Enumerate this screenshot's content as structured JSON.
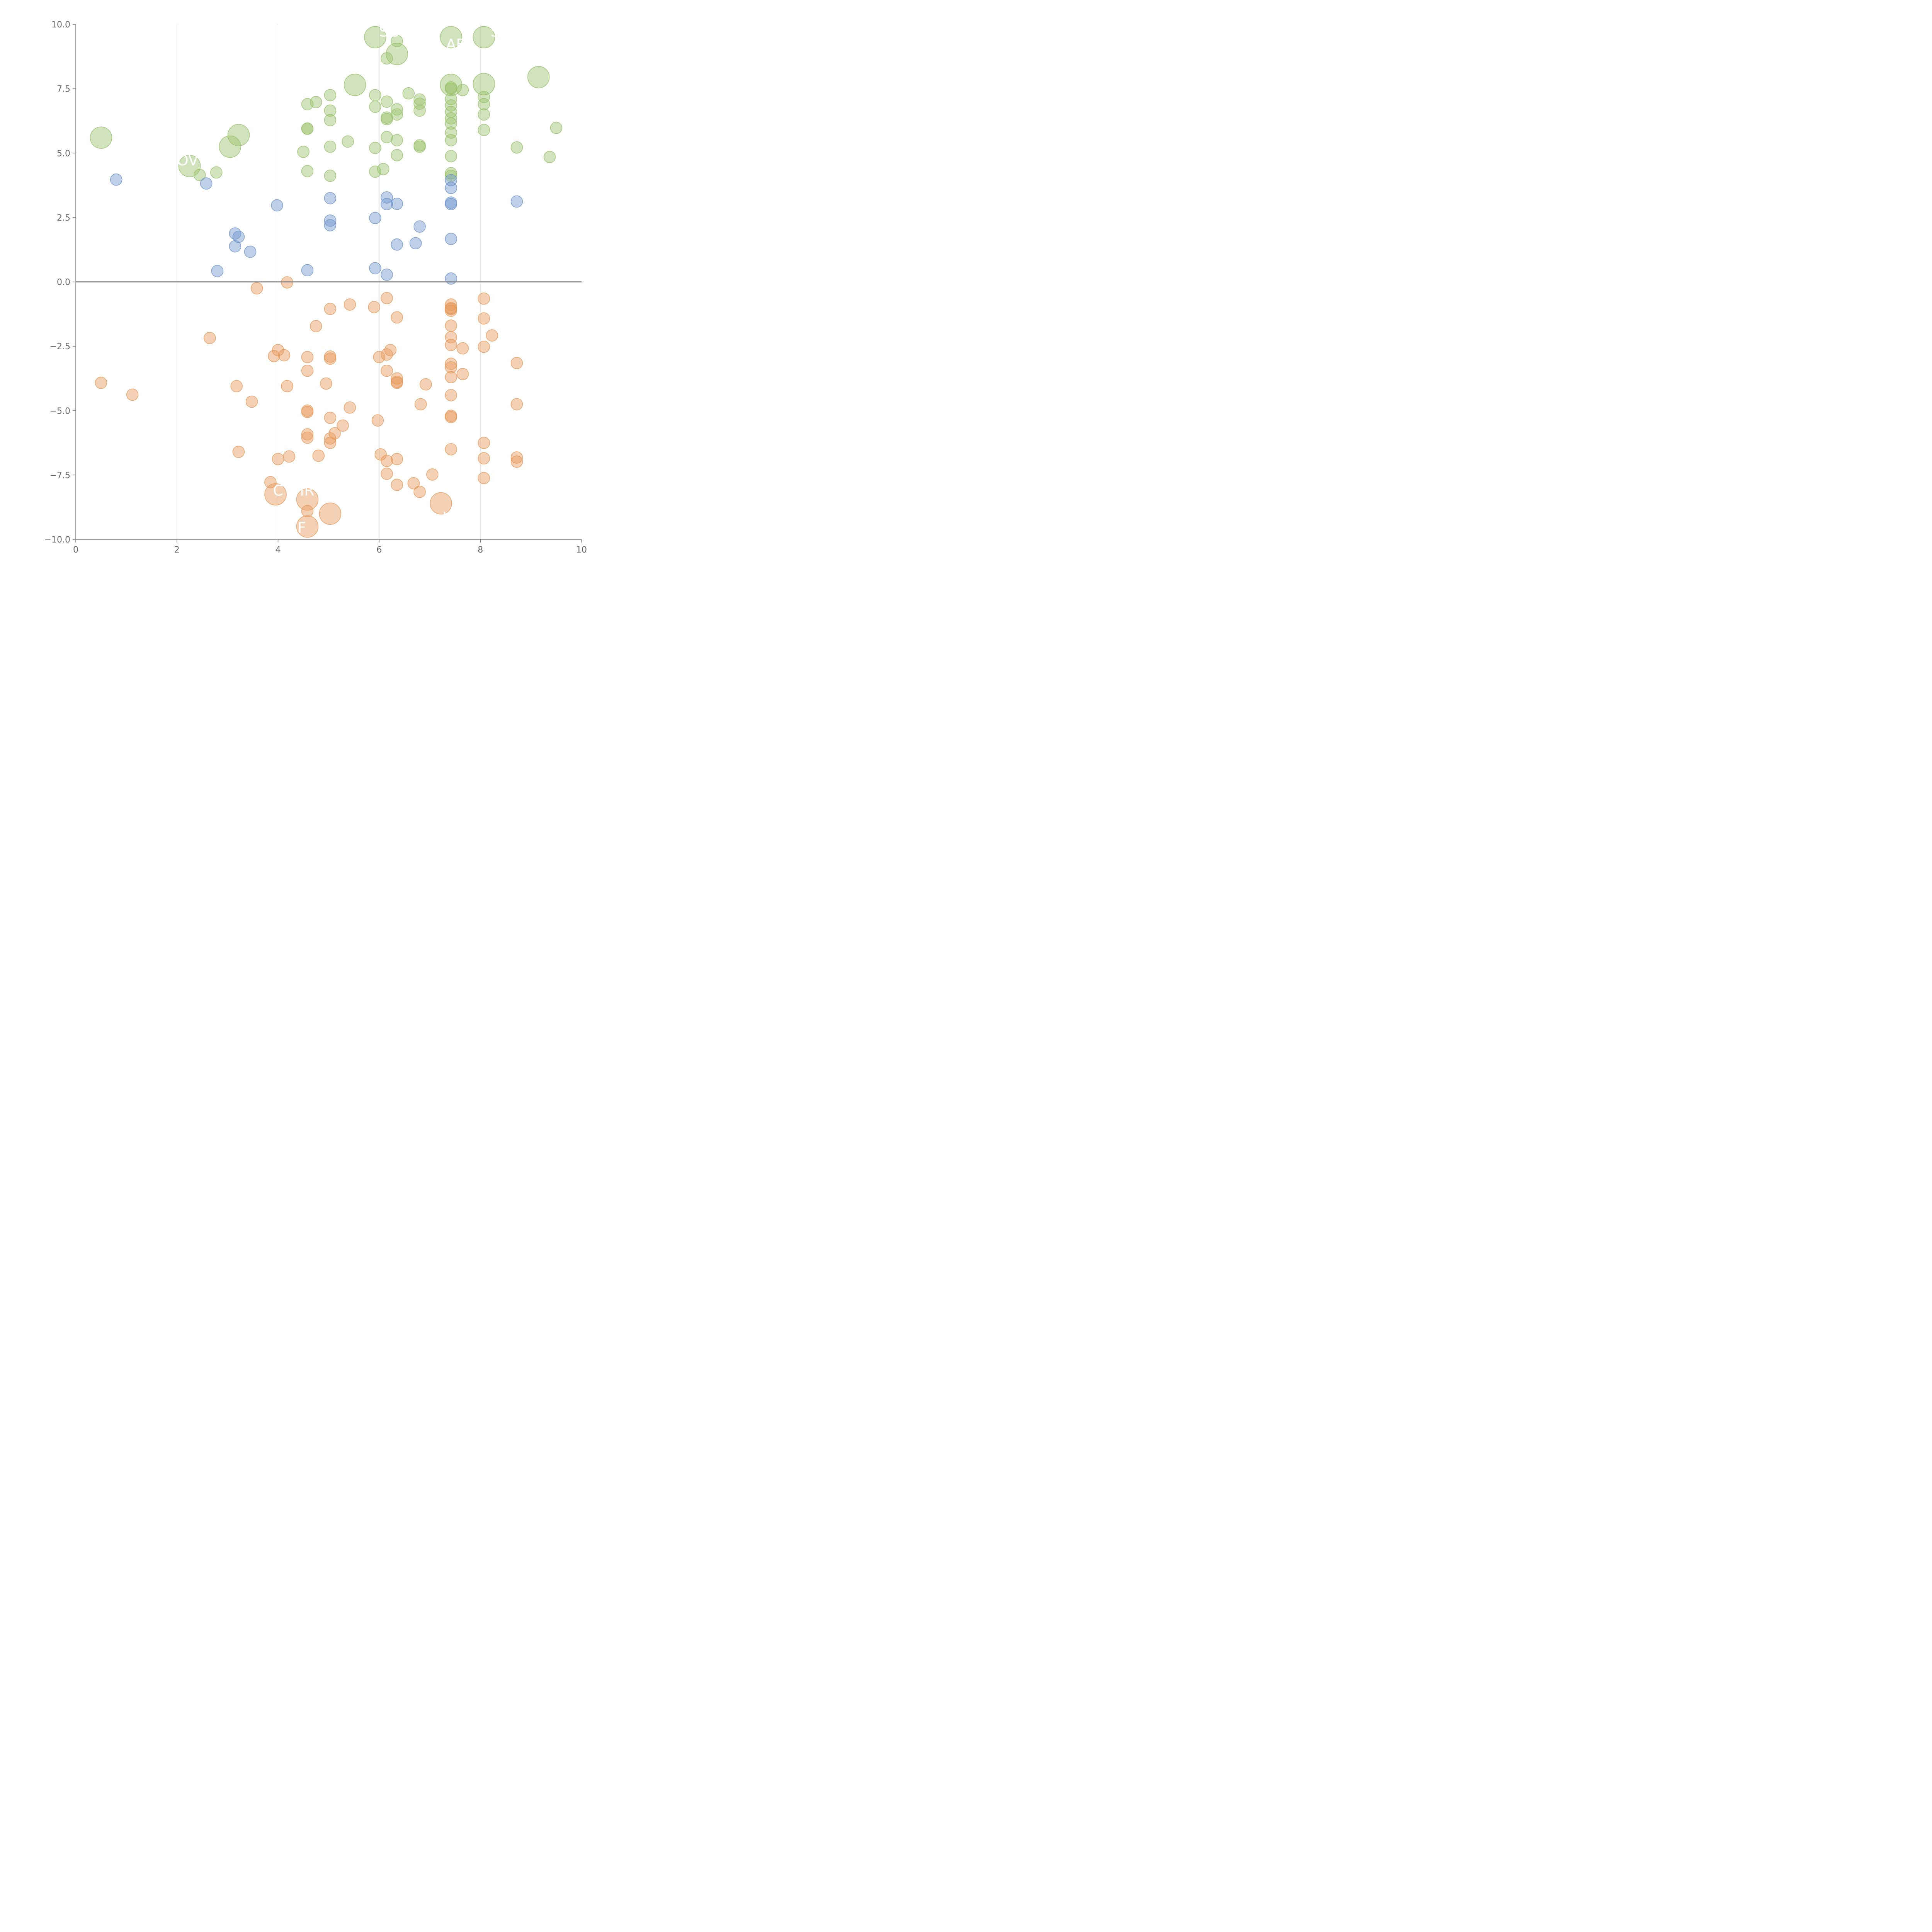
{
  "chart_data": {
    "type": "scatter",
    "title": "",
    "xlabel": "",
    "ylabel": "",
    "xlim": [
      0,
      10
    ],
    "ylim": [
      -10,
      10
    ],
    "x_ticks": [
      0,
      2,
      4,
      6,
      8,
      10
    ],
    "x_tick_labels": [
      "0",
      "2",
      "4",
      "6",
      "8",
      "10"
    ],
    "y_ticks": [
      -10,
      -7.5,
      -5,
      -2.5,
      0,
      2.5,
      5,
      7.5,
      10
    ],
    "y_tick_labels": [
      "−10.0",
      "−7.5",
      "−5.0",
      "−2.5",
      "0.0",
      "2.5",
      "5.0",
      "7.5",
      "10.0"
    ],
    "vertical_gridlines_at": [
      2,
      4,
      6,
      8
    ],
    "zero_line": 0,
    "colors": {
      "green": "#98c16b",
      "blue": "#6f94cc",
      "orange": "#e69a5b",
      "axis": "#808080",
      "grid": "#d9d9d9",
      "label": "#ffffff"
    },
    "series": [
      {
        "name": "green",
        "color": "#98c16b",
        "points": [
          [
            0.5,
            5.6,
            2
          ],
          [
            2.25,
            4.5,
            2
          ],
          [
            2.45,
            4.15,
            1
          ],
          [
            2.78,
            4.25,
            1
          ],
          [
            3.05,
            5.25,
            2
          ],
          [
            3.22,
            5.7,
            2
          ],
          [
            4.5,
            5.05,
            1
          ],
          [
            4.58,
            6.9,
            1
          ],
          [
            4.75,
            6.98,
            1
          ],
          [
            4.58,
            5.95,
            1
          ],
          [
            4.58,
            5.95,
            1
          ],
          [
            4.58,
            4.3,
            1
          ],
          [
            5.03,
            7.25,
            1
          ],
          [
            5.03,
            6.65,
            1
          ],
          [
            5.03,
            6.28,
            1
          ],
          [
            5.03,
            5.25,
            1
          ],
          [
            5.03,
            4.12,
            1
          ],
          [
            5.38,
            5.45,
            1
          ],
          [
            5.52,
            7.65,
            2
          ],
          [
            5.92,
            9.5,
            2
          ],
          [
            5.92,
            7.25,
            1
          ],
          [
            5.92,
            6.8,
            1
          ],
          [
            5.92,
            5.2,
            1
          ],
          [
            5.92,
            4.28,
            1
          ],
          [
            6.08,
            4.38,
            1
          ],
          [
            6.15,
            8.68,
            1
          ],
          [
            6.15,
            7.0,
            1
          ],
          [
            6.15,
            6.32,
            1
          ],
          [
            6.15,
            6.38,
            1
          ],
          [
            6.15,
            5.62,
            1
          ],
          [
            6.35,
            9.35,
            1
          ],
          [
            6.35,
            8.85,
            2
          ],
          [
            6.35,
            6.7,
            1
          ],
          [
            6.35,
            6.5,
            1
          ],
          [
            6.35,
            5.5,
            1
          ],
          [
            6.35,
            4.92,
            1
          ],
          [
            6.58,
            7.32,
            1
          ],
          [
            6.8,
            7.08,
            1
          ],
          [
            6.8,
            6.92,
            1
          ],
          [
            6.8,
            6.65,
            1
          ],
          [
            6.8,
            5.3,
            1
          ],
          [
            6.8,
            5.25,
            1
          ],
          [
            7.42,
            9.5,
            2
          ],
          [
            7.42,
            7.65,
            2
          ],
          [
            7.42,
            7.55,
            1
          ],
          [
            7.42,
            7.5,
            1
          ],
          [
            7.42,
            7.1,
            1
          ],
          [
            7.42,
            6.85,
            1
          ],
          [
            7.42,
            6.6,
            1
          ],
          [
            7.42,
            6.35,
            1
          ],
          [
            7.42,
            6.15,
            1
          ],
          [
            7.42,
            5.8,
            1
          ],
          [
            7.42,
            5.5,
            1
          ],
          [
            7.42,
            4.88,
            1
          ],
          [
            7.42,
            4.22,
            1
          ],
          [
            7.42,
            4.12,
            1
          ],
          [
            7.65,
            7.45,
            1
          ],
          [
            8.07,
            9.5,
            2
          ],
          [
            8.07,
            7.68,
            2
          ],
          [
            8.07,
            7.18,
            1
          ],
          [
            8.07,
            6.9,
            1
          ],
          [
            8.07,
            6.5,
            1
          ],
          [
            8.07,
            5.9,
            1
          ],
          [
            8.72,
            5.22,
            1
          ],
          [
            9.15,
            7.95,
            2
          ],
          [
            9.37,
            4.85,
            1
          ],
          [
            9.5,
            5.98,
            1
          ]
        ]
      },
      {
        "name": "blue",
        "color": "#6f94cc",
        "points": [
          [
            0.8,
            3.97,
            1
          ],
          [
            2.58,
            3.82,
            1
          ],
          [
            2.8,
            0.42,
            1
          ],
          [
            3.15,
            1.88,
            1
          ],
          [
            3.22,
            1.75,
            1
          ],
          [
            3.15,
            1.38,
            1
          ],
          [
            3.45,
            1.17,
            1
          ],
          [
            3.98,
            2.97,
            1
          ],
          [
            4.58,
            0.45,
            1
          ],
          [
            5.03,
            3.25,
            1
          ],
          [
            5.03,
            2.38,
            1
          ],
          [
            5.03,
            2.2,
            1
          ],
          [
            5.92,
            2.48,
            1
          ],
          [
            5.92,
            0.53,
            1
          ],
          [
            6.15,
            3.28,
            1
          ],
          [
            6.15,
            3.02,
            1
          ],
          [
            6.15,
            0.28,
            1
          ],
          [
            6.35,
            3.03,
            1
          ],
          [
            6.35,
            1.45,
            1
          ],
          [
            6.72,
            1.5,
            1
          ],
          [
            6.8,
            2.15,
            1
          ],
          [
            7.42,
            3.95,
            1
          ],
          [
            7.42,
            3.65,
            1
          ],
          [
            7.42,
            3.08,
            1
          ],
          [
            7.42,
            3.02,
            1
          ],
          [
            7.42,
            1.67,
            1
          ],
          [
            7.42,
            0.13,
            1
          ],
          [
            8.72,
            3.12,
            1
          ]
        ]
      },
      {
        "name": "orange",
        "color": "#e69a5b",
        "points": [
          [
            0.5,
            -3.92,
            1
          ],
          [
            1.12,
            -4.38,
            1
          ],
          [
            2.65,
            -2.18,
            1
          ],
          [
            3.18,
            -4.05,
            1
          ],
          [
            3.22,
            -6.6,
            1
          ],
          [
            3.48,
            -4.65,
            1
          ],
          [
            3.58,
            -0.25,
            1
          ],
          [
            3.85,
            -7.78,
            1
          ],
          [
            3.92,
            -2.88,
            1
          ],
          [
            3.95,
            -8.25,
            2
          ],
          [
            4.0,
            -2.65,
            1
          ],
          [
            4.0,
            -6.88,
            1
          ],
          [
            4.12,
            -2.85,
            1
          ],
          [
            4.18,
            -0.02,
            1
          ],
          [
            4.18,
            -4.05,
            1
          ],
          [
            4.22,
            -6.78,
            1
          ],
          [
            4.58,
            -2.92,
            1
          ],
          [
            4.58,
            -3.45,
            1
          ],
          [
            4.58,
            -5.0,
            1
          ],
          [
            4.58,
            -5.05,
            1
          ],
          [
            4.58,
            -5.92,
            1
          ],
          [
            4.58,
            -6.05,
            1
          ],
          [
            4.58,
            -8.45,
            2
          ],
          [
            4.58,
            -8.9,
            1
          ],
          [
            4.58,
            -9.5,
            2
          ],
          [
            4.75,
            -1.72,
            1
          ],
          [
            4.8,
            -6.75,
            1
          ],
          [
            4.95,
            -3.95,
            1
          ],
          [
            5.03,
            -1.05,
            1
          ],
          [
            5.03,
            -2.9,
            1
          ],
          [
            5.03,
            -2.98,
            1
          ],
          [
            5.03,
            -5.28,
            1
          ],
          [
            5.03,
            -6.08,
            1
          ],
          [
            5.03,
            -6.25,
            1
          ],
          [
            5.03,
            -9.0,
            2
          ],
          [
            5.12,
            -5.88,
            1
          ],
          [
            5.28,
            -5.58,
            1
          ],
          [
            5.42,
            -0.88,
            1
          ],
          [
            5.42,
            -4.88,
            1
          ],
          [
            5.9,
            -0.98,
            1
          ],
          [
            5.97,
            -5.38,
            1
          ],
          [
            6.0,
            -2.92,
            1
          ],
          [
            6.03,
            -6.7,
            1
          ],
          [
            6.15,
            -0.63,
            1
          ],
          [
            6.15,
            -2.82,
            1
          ],
          [
            6.15,
            -3.45,
            1
          ],
          [
            6.15,
            -6.95,
            1
          ],
          [
            6.15,
            -7.45,
            1
          ],
          [
            6.22,
            -2.65,
            1
          ],
          [
            6.35,
            -1.38,
            1
          ],
          [
            6.35,
            -3.75,
            1
          ],
          [
            6.35,
            -3.88,
            1
          ],
          [
            6.35,
            -3.92,
            1
          ],
          [
            6.35,
            -6.88,
            1
          ],
          [
            6.35,
            -7.88,
            1
          ],
          [
            6.68,
            -7.82,
            1
          ],
          [
            6.8,
            -8.15,
            1
          ],
          [
            6.82,
            -4.75,
            1
          ],
          [
            6.92,
            -3.98,
            1
          ],
          [
            7.05,
            -7.48,
            1
          ],
          [
            7.22,
            -8.6,
            2
          ],
          [
            7.42,
            -0.88,
            1
          ],
          [
            7.42,
            -1.02,
            1
          ],
          [
            7.42,
            -1.05,
            1
          ],
          [
            7.42,
            -1.12,
            1
          ],
          [
            7.42,
            -1.7,
            1
          ],
          [
            7.42,
            -2.15,
            1
          ],
          [
            7.42,
            -2.45,
            1
          ],
          [
            7.42,
            -3.18,
            1
          ],
          [
            7.42,
            -3.32,
            1
          ],
          [
            7.42,
            -3.7,
            1
          ],
          [
            7.42,
            -4.4,
            1
          ],
          [
            7.42,
            -5.2,
            1
          ],
          [
            7.42,
            -5.25,
            1
          ],
          [
            7.42,
            -6.5,
            1
          ],
          [
            7.65,
            -2.58,
            1
          ],
          [
            7.65,
            -3.58,
            1
          ],
          [
            8.07,
            -0.65,
            1
          ],
          [
            8.07,
            -1.42,
            1
          ],
          [
            8.07,
            -2.52,
            1
          ],
          [
            8.07,
            -6.25,
            1
          ],
          [
            8.07,
            -6.85,
            1
          ],
          [
            8.07,
            -7.62,
            1
          ],
          [
            8.23,
            -2.08,
            1
          ],
          [
            8.72,
            -3.15,
            1
          ],
          [
            8.72,
            -4.75,
            1
          ],
          [
            8.72,
            -6.82,
            1
          ],
          [
            8.72,
            -6.98,
            1
          ]
        ]
      }
    ],
    "annotations": [
      {
        "text": "SC",
        "x": 6.0,
        "y": 9.72
      },
      {
        "text": "S",
        "x": 8.2,
        "y": 9.72
      },
      {
        "text": "AF",
        "x": 7.32,
        "y": 9.22
      },
      {
        "text": "OV",
        "x": 2.0,
        "y": 4.72
      },
      {
        "text": "C",
        "x": 3.9,
        "y": -8.1
      },
      {
        "text": "IR",
        "x": 4.43,
        "y": -8.1
      },
      {
        "text": "IF",
        "x": 4.3,
        "y": -9.55
      },
      {
        "text": "IC",
        "x": 7.25,
        "y": -9.15
      }
    ]
  }
}
